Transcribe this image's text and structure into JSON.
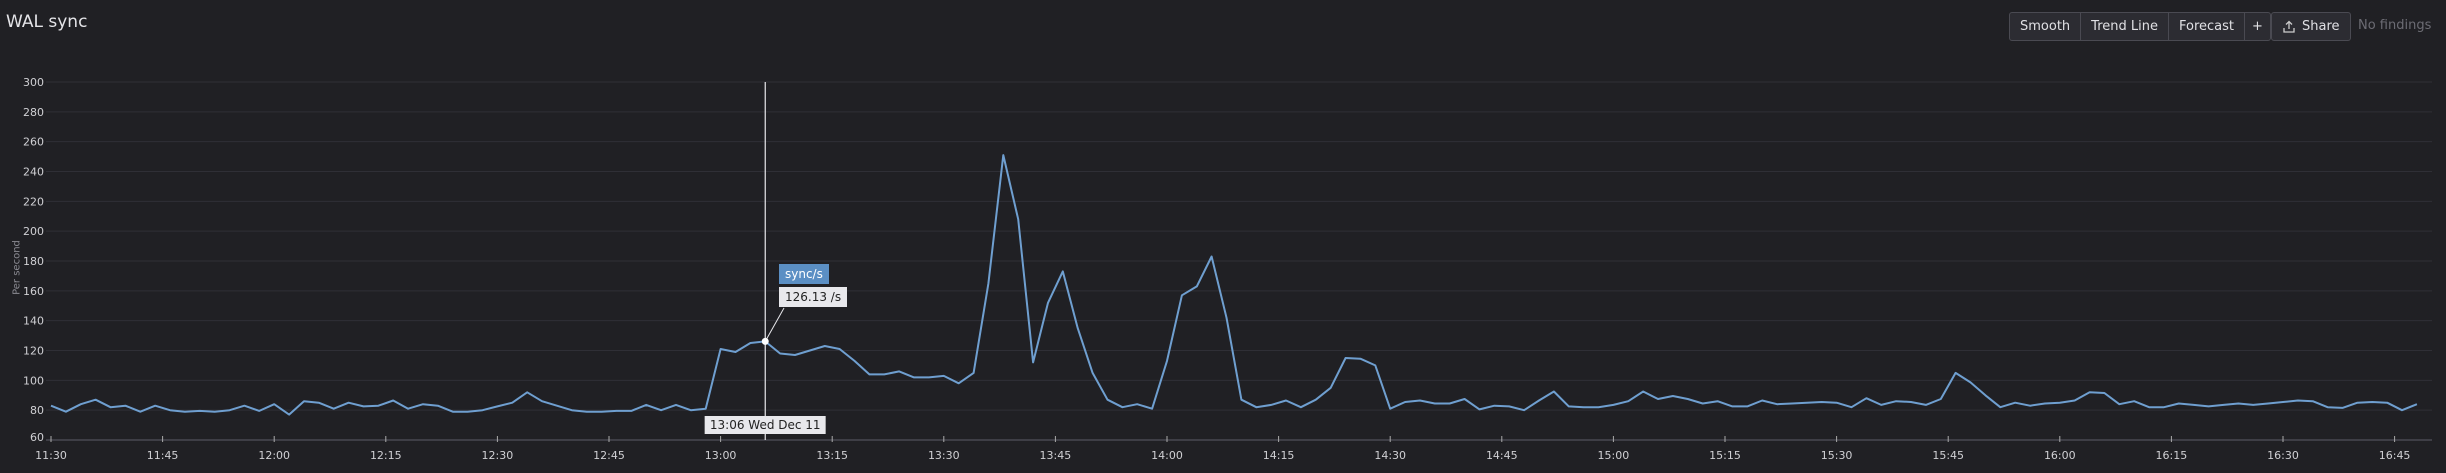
{
  "header": {
    "title": "WAL sync",
    "toolbar": [
      "Smooth",
      "Trend Line",
      "Forecast"
    ],
    "add_icon": "plus-icon",
    "share_label": "Share",
    "share_icon": "share-upload-icon",
    "status": "No findings"
  },
  "tooltip": {
    "series": "sync/s",
    "value": "126.13 /s",
    "time": "13:06 Wed Dec 11",
    "time_value": "13:06"
  },
  "chart_data": {
    "type": "line",
    "ylabel": "Per second",
    "ylim": [
      60,
      300
    ],
    "yticks": [
      "60",
      "80",
      "100",
      "120",
      "140",
      "160",
      "180",
      "200",
      "220",
      "240",
      "260",
      "280",
      "300"
    ],
    "xlim": [
      "11:30",
      "16:50"
    ],
    "xticks": [
      "11:30",
      "11:45",
      "12:00",
      "12:15",
      "12:30",
      "12:45",
      "13:00",
      "13:15",
      "13:30",
      "13:45",
      "14:00",
      "14:15",
      "14:30",
      "14:45",
      "15:00",
      "15:15",
      "15:30",
      "15:45",
      "16:00",
      "16:15",
      "16:30",
      "16:45"
    ],
    "grid": true,
    "line_color": "#6f9fd0",
    "x_start": "11:30",
    "x_step_minutes": 2,
    "series": [
      {
        "name": "sync/s",
        "values": [
          83,
          79,
          84,
          87,
          82,
          83,
          79,
          83,
          80,
          79,
          79.5,
          79,
          80,
          83,
          79.5,
          84,
          77,
          86,
          85,
          81,
          85,
          82.5,
          83,
          86.5,
          81,
          84,
          83,
          79,
          79,
          80,
          82.5,
          85,
          92,
          86,
          83,
          80,
          79,
          79,
          79.5,
          79.5,
          83.5,
          80,
          83.5,
          80,
          81,
          121,
          119,
          125,
          126.13,
          118,
          117,
          120,
          123,
          121,
          113,
          104,
          104,
          106,
          102,
          102,
          103,
          98,
          105,
          165,
          251,
          208,
          112,
          152,
          173,
          135,
          105,
          87,
          82,
          84,
          81,
          113,
          157,
          163,
          183,
          142,
          87,
          82,
          83.5,
          86.5,
          82,
          87,
          95,
          115,
          114.5,
          110,
          81,
          85.5,
          86.5,
          84.5,
          84.5,
          87.5,
          80.5,
          83,
          82.5,
          80,
          86.5,
          92.5,
          82.5,
          82,
          82,
          83.5,
          86,
          92.5,
          87.5,
          89.5,
          87.5,
          84.5,
          86,
          82.5,
          82.5,
          86.5,
          84,
          84.5,
          85,
          85.5,
          85,
          82,
          88,
          83.5,
          86,
          85.5,
          83.5,
          87.5,
          105,
          98.6,
          90,
          82,
          85,
          83,
          84.5,
          85,
          86.5,
          92,
          91.5,
          84,
          86,
          82,
          82,
          84.5,
          83.5,
          82.5,
          83.5,
          84.5,
          83.5,
          84.5,
          85.5,
          86.5,
          86,
          82,
          81.5,
          85,
          85.5,
          85,
          80,
          84
        ]
      }
    ]
  }
}
